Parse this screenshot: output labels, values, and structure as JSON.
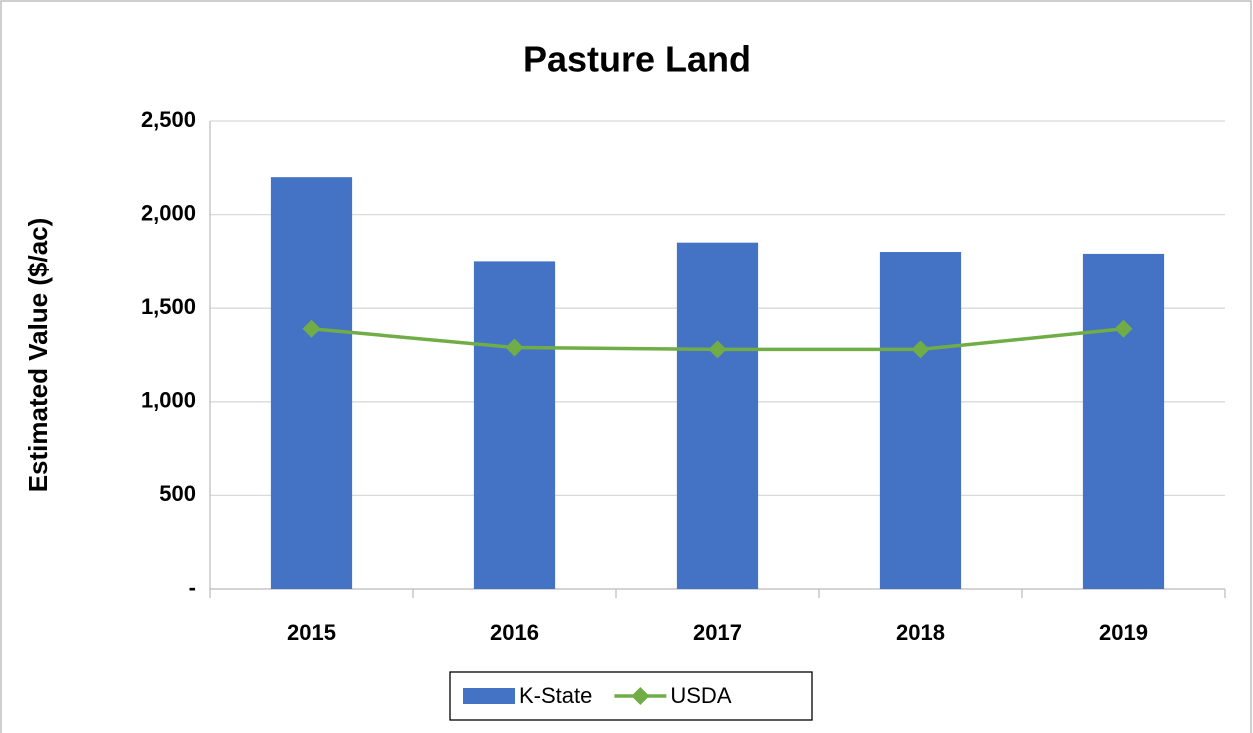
{
  "chart_data": {
    "type": "bar",
    "title": "Pasture Land",
    "y_label": "Estimated Value ($/ac)",
    "categories": [
      "2015",
      "2016",
      "2017",
      "2018",
      "2019"
    ],
    "series": [
      {
        "name": "K-State",
        "type": "bar",
        "color": "#4472c4",
        "values": [
          2200,
          1750,
          1850,
          1800,
          1790
        ]
      },
      {
        "name": "USDA",
        "type": "line",
        "color": "#70ad47",
        "values": [
          1390,
          1290,
          1280,
          1280,
          1390
        ]
      }
    ],
    "ylim": [
      0,
      2500
    ],
    "yticks": [
      {
        "value": 0,
        "label": "-"
      },
      500,
      {
        "value": 1000,
        "label": "1,000"
      },
      {
        "value": 1500,
        "label": "1,500"
      },
      {
        "value": 2000,
        "label": "2,000"
      },
      {
        "value": 2500,
        "label": "2,500"
      }
    ],
    "grid": true,
    "legend": "bottom"
  }
}
